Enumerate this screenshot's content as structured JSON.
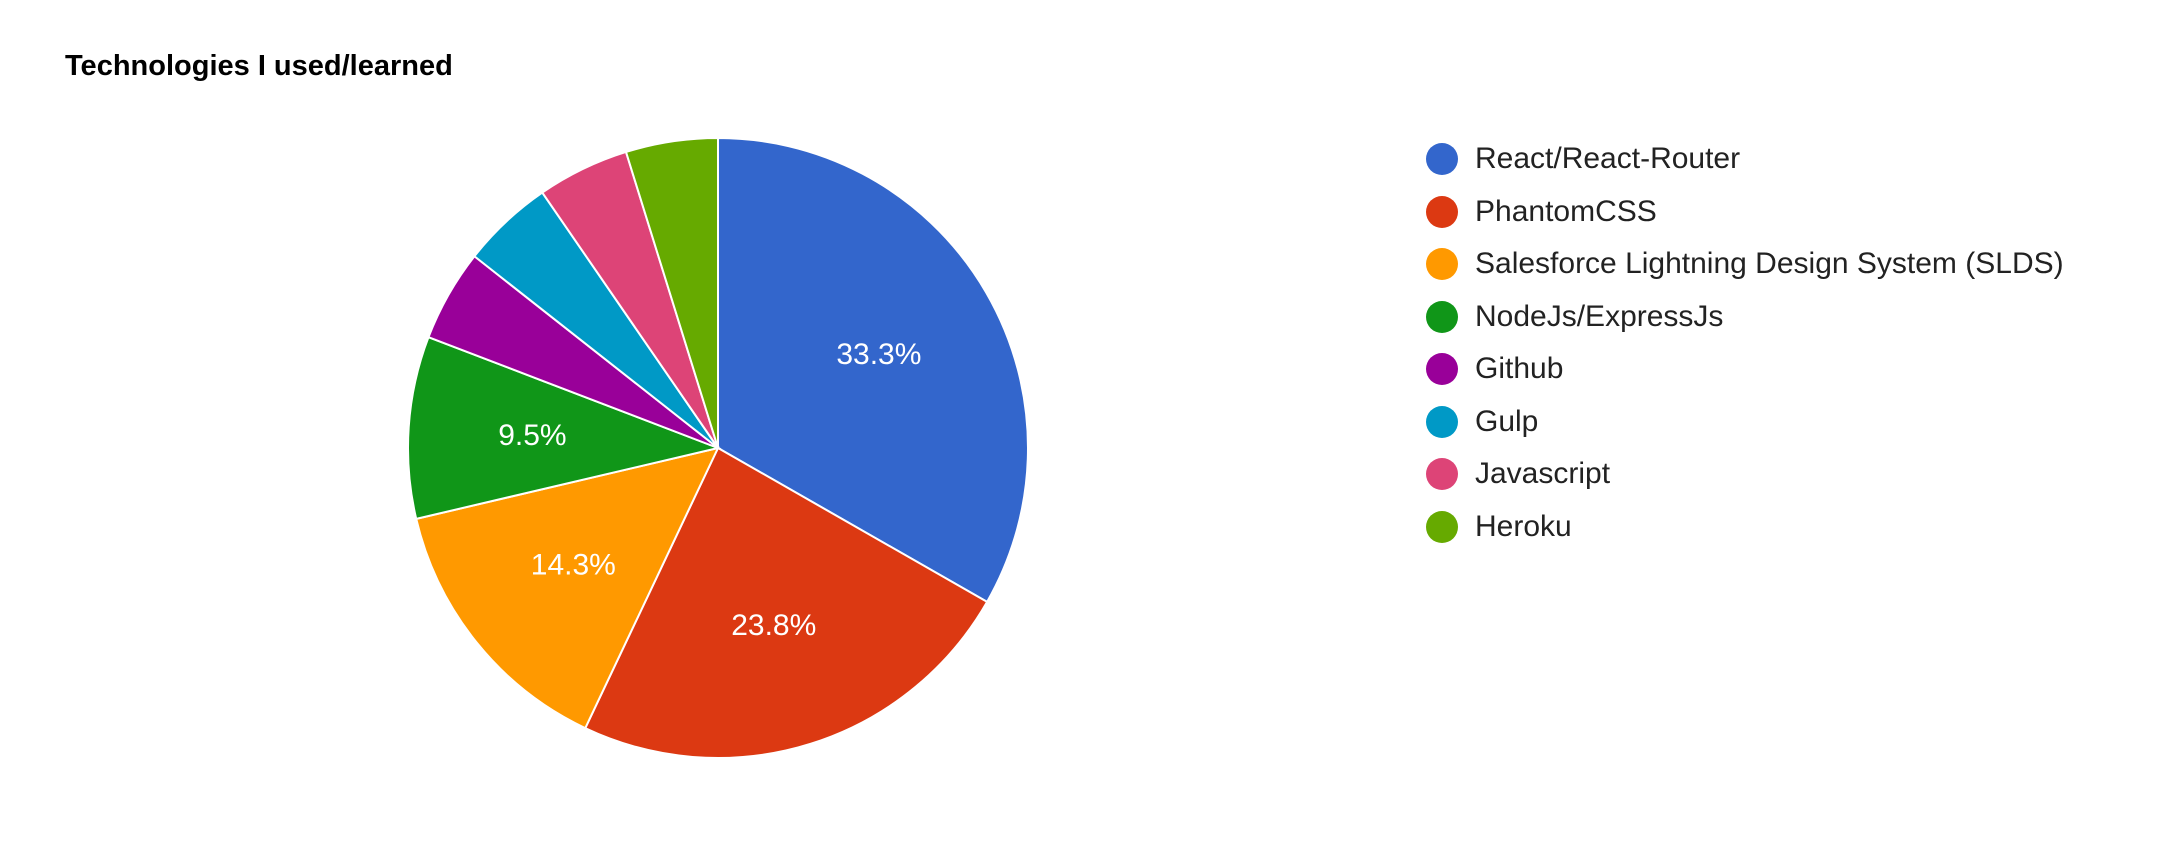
{
  "chart_data": {
    "type": "pie",
    "title": "Technologies I used/learned",
    "legend_position": "right",
    "slices": [
      {
        "label": "React/React-Router",
        "value": 33.3,
        "display": "33.3%",
        "color": "#3366cc"
      },
      {
        "label": "PhantomCSS",
        "value": 23.8,
        "display": "23.8%",
        "color": "#dc3912"
      },
      {
        "label": "Salesforce Lightning Design System (SLDS)",
        "value": 14.3,
        "display": "14.3%",
        "color": "#ff9900"
      },
      {
        "label": "NodeJs/ExpressJs",
        "value": 9.5,
        "display": "9.5%",
        "color": "#109618"
      },
      {
        "label": "Github",
        "value": 4.8,
        "display": "",
        "color": "#990099"
      },
      {
        "label": "Gulp",
        "value": 4.8,
        "display": "",
        "color": "#0099c6"
      },
      {
        "label": "Javascript",
        "value": 4.8,
        "display": "",
        "color": "#dd4477"
      },
      {
        "label": "Heroku",
        "value": 4.8,
        "display": "",
        "color": "#66aa00"
      }
    ]
  }
}
